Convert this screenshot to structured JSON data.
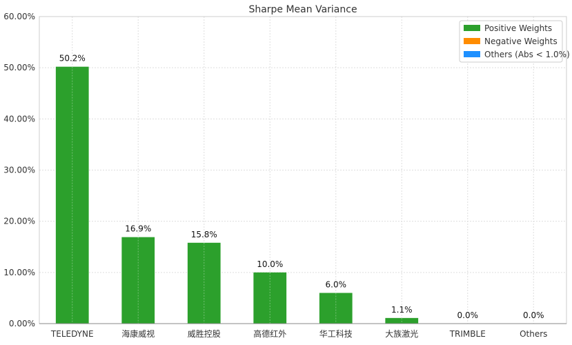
{
  "chart_data": {
    "type": "bar",
    "title": "Sharpe Mean Variance",
    "categories": [
      "TELEDYNE",
      "海康威视",
      "威胜控股",
      "高德红外",
      "华工科技",
      "大族激光",
      "TRIMBLE",
      "Others"
    ],
    "values": [
      50.2,
      16.9,
      15.8,
      10.0,
      6.0,
      1.1,
      0.0,
      0.0
    ],
    "data_labels": [
      "50.2%",
      "16.9%",
      "15.8%",
      "10.0%",
      "6.0%",
      "1.1%",
      "0.0%",
      "0.0%"
    ],
    "ylim": [
      0,
      60
    ],
    "yticks": [
      "0.00%",
      "10.00%",
      "20.00%",
      "30.00%",
      "40.00%",
      "50.00%",
      "60.00%"
    ],
    "xlabel": "",
    "ylabel": "",
    "grid": true,
    "legend_position": "top-right",
    "legend": [
      {
        "label": "Positive Weights",
        "color": "#2ca02c"
      },
      {
        "label": "Negative Weights",
        "color": "#ff8c00"
      },
      {
        "label": "Others (Abs < 1.0%)",
        "color": "#1e90ff"
      }
    ],
    "bar_color": "#2ca02c"
  }
}
